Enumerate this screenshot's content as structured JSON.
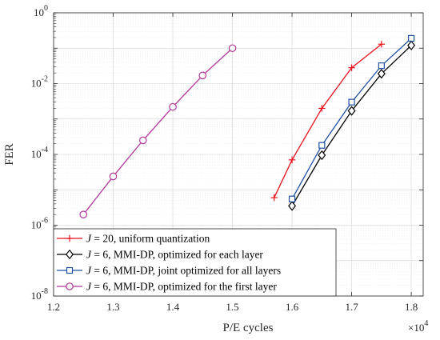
{
  "chart_data": {
    "type": "line",
    "xlabel": "P/E cycles",
    "ylabel": "FER",
    "x_multiplier_label": "×10",
    "x_multiplier_exp": "4",
    "xlim": [
      1.2,
      1.82
    ],
    "ylim_log10": [
      -8,
      0
    ],
    "xticks": [
      "1.2",
      "1.3",
      "1.4",
      "1.5",
      "1.6",
      "1.7",
      "1.8"
    ],
    "yticks": [
      {
        "base": "10",
        "exp": "0"
      },
      {
        "base": "10",
        "exp": "-2"
      },
      {
        "base": "10",
        "exp": "-4"
      },
      {
        "base": "10",
        "exp": "-6"
      },
      {
        "base": "10",
        "exp": "-8"
      }
    ],
    "grid": true,
    "legend_position": "bottom-left",
    "series": [
      {
        "legend_var": "J",
        "legend_rest": " = 20, uniform quantization",
        "color": "#e8121c",
        "marker": "plus",
        "x": [
          1.57,
          1.6,
          1.65,
          1.7,
          1.75
        ],
        "y": [
          6e-06,
          7e-05,
          0.002,
          0.028,
          0.13
        ]
      },
      {
        "legend_var": "J",
        "legend_rest": " = 6, MMI-DP, optimized for each layer",
        "color": "#000000",
        "marker": "diamond",
        "x": [
          1.6,
          1.65,
          1.7,
          1.75,
          1.8
        ],
        "y": [
          3.5e-06,
          9.5e-05,
          0.0017,
          0.019,
          0.12
        ]
      },
      {
        "legend_var": "J",
        "legend_rest": " = 6, MMI-DP, joint optimized for all layers",
        "color": "#1f50a3",
        "marker": "square",
        "x": [
          1.6,
          1.65,
          1.7,
          1.75,
          1.8
        ],
        "y": [
          5.5e-06,
          0.00018,
          0.003,
          0.032,
          0.19
        ]
      },
      {
        "legend_var": "J",
        "legend_rest": " = 6, MMI-DP, optimized for the first layer",
        "color": "#b0359b",
        "marker": "circle",
        "x": [
          1.25,
          1.3,
          1.35,
          1.4,
          1.45,
          1.5
        ],
        "y": [
          2e-06,
          2.4e-05,
          0.00025,
          0.0022,
          0.017,
          0.1
        ]
      }
    ]
  }
}
